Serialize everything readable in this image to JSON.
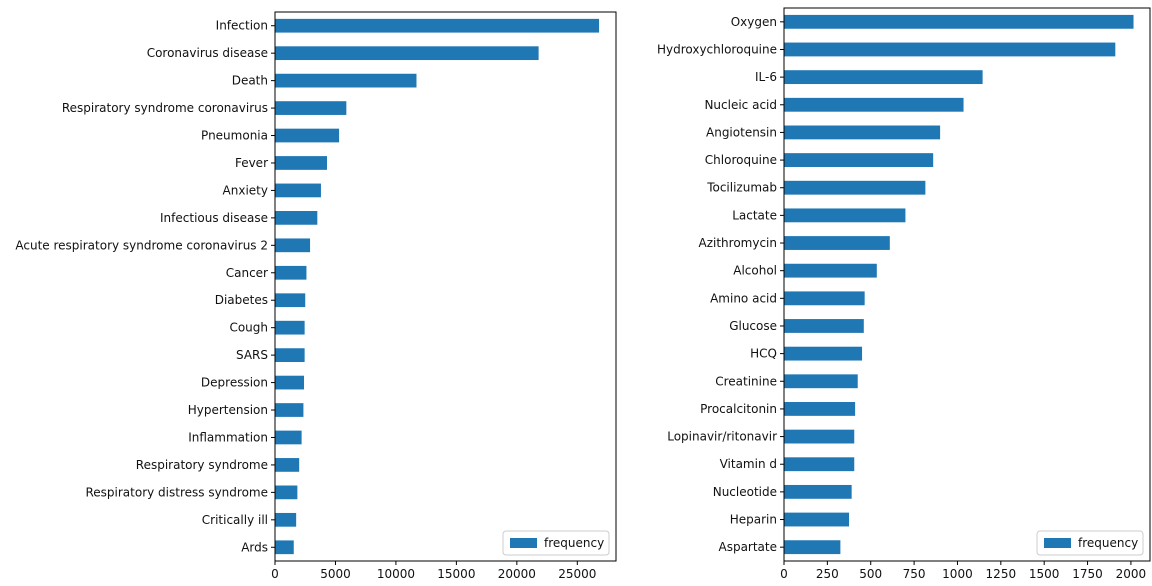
{
  "chart_data": [
    {
      "type": "bar",
      "orientation": "horizontal",
      "categories": [
        "Infection",
        "Coronavirus disease",
        "Death",
        "Respiratory syndrome coronavirus",
        "Pneumonia",
        "Fever",
        "Anxiety",
        "Infectious disease",
        "Acute respiratory syndrome coronavirus 2",
        "Cancer",
        "Diabetes",
        "Cough",
        "SARS",
        "Depression",
        "Hypertension",
        "Inflammation",
        "Respiratory syndrome",
        "Respiratory distress syndrome",
        "Critically ill",
        "Ards"
      ],
      "series": [
        {
          "name": "frequency",
          "color": "#1f77b4",
          "values": [
            26800,
            21800,
            11700,
            5900,
            5300,
            4300,
            3800,
            3500,
            2900,
            2600,
            2500,
            2450,
            2450,
            2400,
            2350,
            2200,
            2000,
            1850,
            1750,
            1550
          ]
        }
      ],
      "xticks": [
        0,
        5000,
        10000,
        15000,
        20000,
        25000
      ],
      "tick_labels": [
        "0",
        "5000",
        "10000",
        "15000",
        "20000",
        "25000"
      ],
      "xlim": [
        0,
        28200
      ],
      "legend": {
        "label": "frequency",
        "position": "lower-right"
      },
      "grid": false
    },
    {
      "type": "bar",
      "orientation": "horizontal",
      "categories": [
        "Oxygen",
        "Hydroxychloroquine",
        "IL-6",
        "Nucleic acid",
        "Angiotensin",
        "Chloroquine",
        "Tocilizumab",
        "Lactate",
        "Azithromycin",
        "Alcohol",
        "Amino acid",
        "Glucose",
        "HCQ",
        "Creatinine",
        "Procalcitonin",
        "Lopinavir/ritonavir",
        "Vitamin d",
        "Nucleotide",
        "Heparin",
        "Aspartate"
      ],
      "series": [
        {
          "name": "frequency",
          "color": "#1f77b4",
          "values": [
            2015,
            1910,
            1145,
            1035,
            900,
            860,
            815,
            700,
            610,
            535,
            465,
            460,
            450,
            425,
            410,
            405,
            405,
            390,
            375,
            325
          ]
        }
      ],
      "xticks": [
        0,
        250,
        500,
        750,
        1000,
        1250,
        1500,
        1750,
        2000
      ],
      "tick_labels": [
        "0",
        "250",
        "500",
        "750",
        "1000",
        "1250",
        "1500",
        "1750",
        "2000"
      ],
      "xlim": [
        0,
        2110
      ],
      "legend": {
        "label": "frequency",
        "position": "lower-right"
      },
      "grid": false
    }
  ]
}
